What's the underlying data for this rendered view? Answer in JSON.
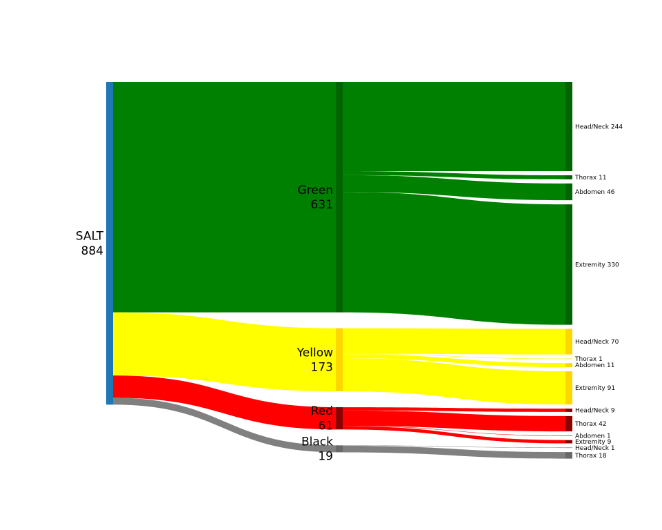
{
  "sankey": {
    "root": {
      "name": "SALT",
      "value": "884",
      "color": "#1f77b4"
    },
    "categories": [
      {
        "key": "green",
        "name": "Green",
        "value": "631",
        "color": "#008000",
        "dark": "#006400",
        "regions": [
          {
            "name": "Head/Neck",
            "value": 244
          },
          {
            "name": "Thorax",
            "value": 11
          },
          {
            "name": "Abdomen",
            "value": 46
          },
          {
            "name": "Extremity",
            "value": 330
          }
        ]
      },
      {
        "key": "yellow",
        "name": "Yellow",
        "value": "173",
        "color": "#ffff00",
        "dark": "#ffd700",
        "regions": [
          {
            "name": "Head/Neck",
            "value": 70
          },
          {
            "name": "Thorax",
            "value": 1
          },
          {
            "name": "Abdomen",
            "value": 11
          },
          {
            "name": "Extremity",
            "value": 91
          }
        ]
      },
      {
        "key": "red",
        "name": "Red",
        "value": "61",
        "color": "#ff0000",
        "dark": "#8b0000",
        "regions": [
          {
            "name": "Head/Neck",
            "value": 9
          },
          {
            "name": "Thorax",
            "value": 42
          },
          {
            "name": "Abdomen",
            "value": 1
          },
          {
            "name": "Extremity",
            "value": 9
          }
        ]
      },
      {
        "key": "black",
        "name": "Black",
        "value": "19",
        "color": "#808080",
        "dark": "#696969",
        "regions": [
          {
            "name": "Head/Neck",
            "value": 1
          },
          {
            "name": "Thorax",
            "value": 18
          }
        ]
      }
    ]
  }
}
